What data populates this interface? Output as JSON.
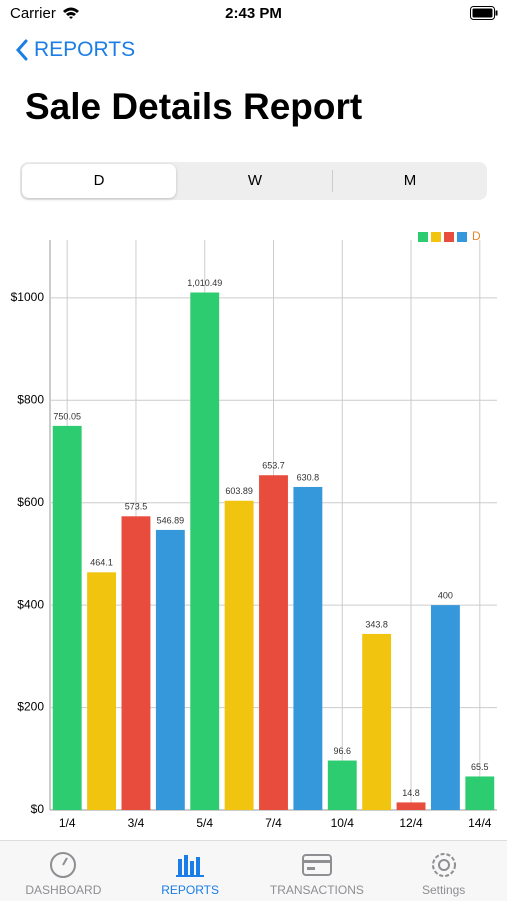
{
  "status_bar": {
    "carrier": "Carrier",
    "time": "2:43 PM"
  },
  "nav": {
    "back": "REPORTS",
    "title": "Sale Details Report"
  },
  "segments": [
    "D",
    "W",
    "M"
  ],
  "chart_data": {
    "type": "bar",
    "categories": [
      "1/4",
      null,
      "3/4",
      null,
      "5/4",
      null,
      "7/4",
      null,
      "10/4",
      null,
      "12/4",
      null,
      "14/4"
    ],
    "series": [
      {
        "name": "D",
        "colors": [
          "#2ecc71",
          "#f1c40f",
          "#e74c3c",
          "#3498db"
        ],
        "values": [
          750.05,
          464.1,
          573.5,
          546.89,
          1010.49,
          603.89,
          653.7,
          630.8,
          96.6,
          343.8,
          14.8,
          400,
          65.5
        ],
        "value_labels": [
          "750.05",
          "464.1",
          "573.5",
          "546.89",
          "1,010.49",
          "603.89",
          "653.7",
          "630.8",
          "96.6",
          "343.8",
          "14.8",
          "400",
          "65.5"
        ]
      }
    ],
    "ylim": [
      0,
      1113
    ],
    "yticks": [
      {
        "value": 0,
        "label": "$0"
      },
      {
        "value": 200,
        "label": "$200"
      },
      {
        "value": 400,
        "label": "$400"
      },
      {
        "value": 600,
        "label": "$600"
      },
      {
        "value": 800,
        "label": "$800"
      },
      {
        "value": 1000,
        "label": "$1000"
      }
    ],
    "grid": true,
    "legend": "top-right"
  },
  "tabs": [
    "DASHBOARD",
    "REPORTS",
    "TRANSACTIONS",
    "Settings"
  ]
}
